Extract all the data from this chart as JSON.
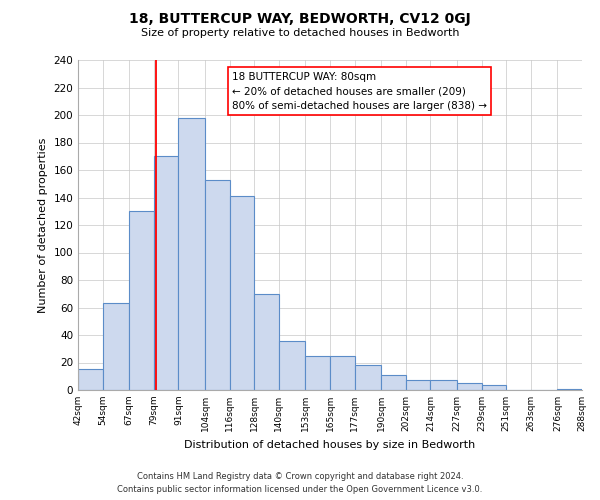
{
  "title": "18, BUTTERCUP WAY, BEDWORTH, CV12 0GJ",
  "subtitle": "Size of property relative to detached houses in Bedworth",
  "xlabel": "Distribution of detached houses by size in Bedworth",
  "ylabel": "Number of detached properties",
  "bar_edges": [
    42,
    54,
    67,
    79,
    91,
    104,
    116,
    128,
    140,
    153,
    165,
    177,
    190,
    202,
    214,
    227,
    239,
    251,
    263,
    276,
    288
  ],
  "bar_heights": [
    15,
    63,
    130,
    170,
    198,
    153,
    141,
    70,
    36,
    25,
    25,
    18,
    11,
    7,
    7,
    5,
    4,
    0,
    0,
    1
  ],
  "bar_color": "#cdd9ee",
  "bar_edge_color": "#5b8cc8",
  "red_line_x": 80,
  "annotation_line1": "18 BUTTERCUP WAY: 80sqm",
  "annotation_line2": "← 20% of detached houses are smaller (209)",
  "annotation_line3": "80% of semi-detached houses are larger (838) →",
  "ylim": [
    0,
    240
  ],
  "yticks": [
    0,
    20,
    40,
    60,
    80,
    100,
    120,
    140,
    160,
    180,
    200,
    220,
    240
  ],
  "tick_labels": [
    "42sqm",
    "54sqm",
    "67sqm",
    "79sqm",
    "91sqm",
    "104sqm",
    "116sqm",
    "128sqm",
    "140sqm",
    "153sqm",
    "165sqm",
    "177sqm",
    "190sqm",
    "202sqm",
    "214sqm",
    "227sqm",
    "239sqm",
    "251sqm",
    "263sqm",
    "276sqm",
    "288sqm"
  ],
  "footer_line1": "Contains HM Land Registry data © Crown copyright and database right 2024.",
  "footer_line2": "Contains public sector information licensed under the Open Government Licence v3.0.",
  "background_color": "#ffffff",
  "grid_color": "#c8c8c8"
}
